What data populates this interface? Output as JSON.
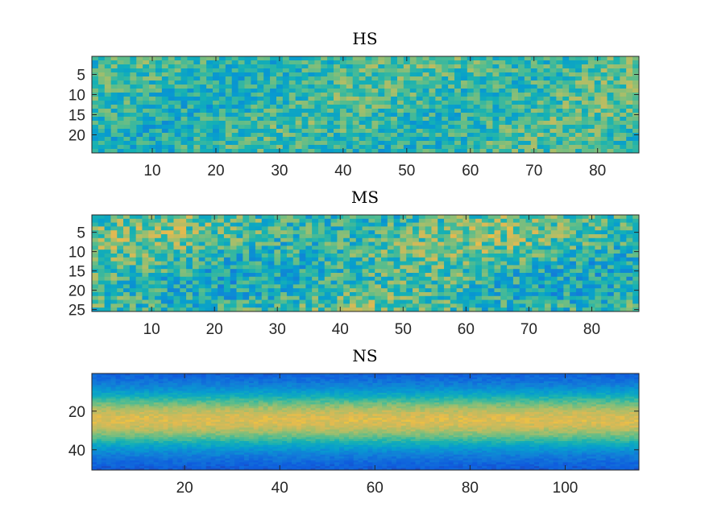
{
  "chart_data": [
    {
      "type": "heatmap",
      "title": "HS",
      "xlabel": "",
      "ylabel": "",
      "cols": 86,
      "rows": 24,
      "x_ticks": [
        10,
        20,
        30,
        40,
        50,
        60,
        70,
        80
      ],
      "y_ticks": [
        5,
        10,
        15,
        20
      ],
      "colormap": "parula",
      "y_direction": "reversed"
    },
    {
      "type": "heatmap",
      "title": "MS",
      "xlabel": "",
      "ylabel": "",
      "cols": 87,
      "rows": 25,
      "x_ticks": [
        10,
        20,
        30,
        40,
        50,
        60,
        70,
        80
      ],
      "y_ticks": [
        5,
        10,
        15,
        20,
        25
      ],
      "colormap": "parula",
      "y_direction": "reversed"
    },
    {
      "type": "heatmap",
      "title": "NS",
      "xlabel": "",
      "ylabel": "",
      "cols": 115,
      "rows": 50,
      "x_ticks": [
        20,
        40,
        60,
        80,
        100
      ],
      "y_ticks": [
        20,
        40
      ],
      "colormap": "parula",
      "y_direction": "reversed"
    }
  ]
}
